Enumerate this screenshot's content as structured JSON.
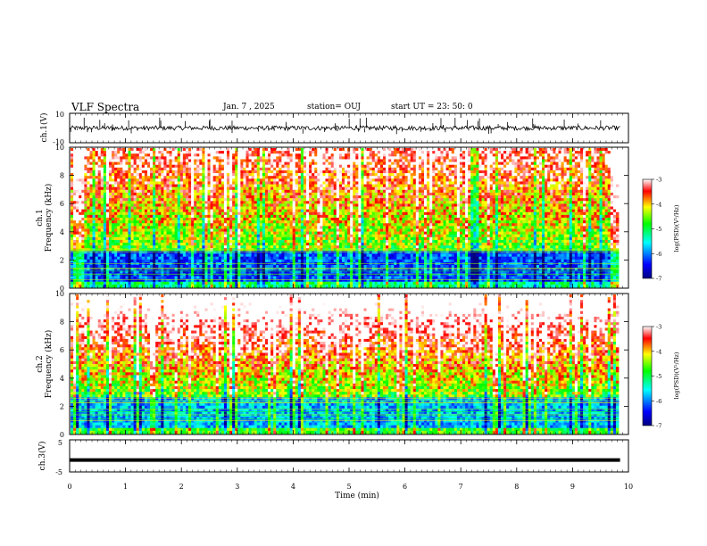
{
  "header": {
    "title": "VLF Spectra",
    "date": "Jan. 7 , 2025",
    "station": "station= OUJ",
    "start": "start  UT =   23: 50: 0"
  },
  "colors": {
    "colormap": [
      "#000080",
      "#0000ff",
      "#00ffff",
      "#00ff00",
      "#ffff00",
      "#ff0000",
      "#ffffff"
    ],
    "trace": "#000000"
  },
  "chart_data": [
    {
      "type": "line",
      "name": "ch1-waveform",
      "ylabel": "ch.1(V)",
      "ylim": [
        -10,
        10
      ],
      "yticks": [
        "10",
        "-10"
      ],
      "xlim": [
        0,
        10
      ],
      "description_values": {
        "baseline": 0,
        "noise_amplitude": 1.5,
        "spike_amplitude": 9
      }
    },
    {
      "type": "heatmap",
      "name": "ch1-spectrogram",
      "ylabel_line1": "ch.1",
      "ylabel_line2": "Frequency (kHz)",
      "ylim": [
        0,
        10
      ],
      "yticks": [
        "0",
        "2",
        "4",
        "6",
        "8",
        "10"
      ],
      "xlim": [
        0,
        9.85
      ],
      "colorbar": {
        "label": "log(PSD)(V²/Hz)",
        "range": [
          -7,
          -3
        ],
        "ticks": [
          "-3",
          "-4",
          "-5",
          "-6",
          "-7"
        ]
      }
    },
    {
      "type": "heatmap",
      "name": "ch2-spectrogram",
      "ylabel_line1": "ch.2",
      "ylabel_line2": "Frequency (kHz)",
      "ylim": [
        0,
        10
      ],
      "yticks": [
        "0",
        "2",
        "4",
        "6",
        "8",
        "10"
      ],
      "xlim": [
        0,
        9.85
      ],
      "colorbar": {
        "label": "log(PSD)(V²/Hz)",
        "range": [
          -7,
          -3
        ],
        "ticks": [
          "-3",
          "-4",
          "-5",
          "-6",
          "-7"
        ]
      }
    },
    {
      "type": "line",
      "name": "ch3-waveform",
      "ylabel": "ch.3(V)",
      "ylim": [
        -5,
        5
      ],
      "yticks": [
        "5",
        "-5"
      ],
      "xlim": [
        0,
        10
      ],
      "values_constant": -1.3
    }
  ],
  "xaxis": {
    "label": "Time (min)",
    "ticks": [
      "0",
      "1",
      "2",
      "3",
      "4",
      "5",
      "6",
      "7",
      "8",
      "9",
      "10"
    ],
    "range": [
      0,
      10
    ]
  }
}
